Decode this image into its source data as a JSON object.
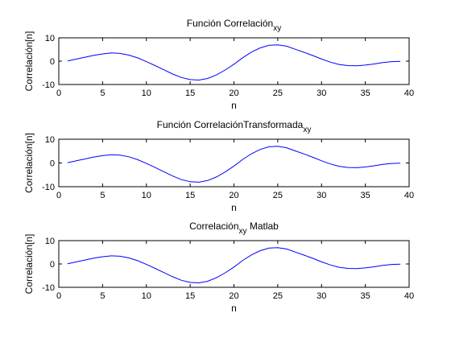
{
  "chart_data": [
    {
      "type": "line",
      "title": "Función Correlación",
      "title_sub": "xy",
      "title_tail": "",
      "xlabel": "n",
      "ylabel": "Correlación[n]",
      "xlim": [
        0,
        40
      ],
      "ylim": [
        -10,
        10
      ],
      "xticks": [
        0,
        5,
        10,
        15,
        20,
        25,
        30,
        35,
        40
      ],
      "yticks": [
        -10,
        0,
        10
      ],
      "grid": false,
      "color": "#0000ff",
      "x": [
        1,
        2,
        3,
        4,
        5,
        6,
        7,
        8,
        9,
        10,
        11,
        12,
        13,
        14,
        15,
        16,
        17,
        18,
        19,
        20,
        21,
        22,
        23,
        24,
        25,
        26,
        27,
        28,
        29,
        30,
        31,
        32,
        33,
        34,
        35,
        36,
        37,
        38,
        39
      ],
      "y": [
        0.1,
        0.9,
        1.7,
        2.5,
        3.1,
        3.5,
        3.3,
        2.6,
        1.4,
        -0.2,
        -1.9,
        -3.7,
        -5.5,
        -7.0,
        -7.9,
        -8.1,
        -7.4,
        -5.9,
        -3.8,
        -1.3,
        1.5,
        3.9,
        5.7,
        6.8,
        7.0,
        6.4,
        5.1,
        3.8,
        2.4,
        0.9,
        -0.4,
        -1.4,
        -1.9,
        -2.0,
        -1.7,
        -1.2,
        -0.6,
        -0.2,
        -0.1
      ]
    },
    {
      "type": "line",
      "title": "Función CorrelaciónTransformada",
      "title_sub": "xy",
      "title_tail": "",
      "xlabel": "n",
      "ylabel": "Correlación[n]",
      "xlim": [
        0,
        40
      ],
      "ylim": [
        -10,
        10
      ],
      "xticks": [
        0,
        5,
        10,
        15,
        20,
        25,
        30,
        35,
        40
      ],
      "yticks": [
        -10,
        0,
        10
      ],
      "grid": false,
      "color": "#0000ff",
      "x": [
        1,
        2,
        3,
        4,
        5,
        6,
        7,
        8,
        9,
        10,
        11,
        12,
        13,
        14,
        15,
        16,
        17,
        18,
        19,
        20,
        21,
        22,
        23,
        24,
        25,
        26,
        27,
        28,
        29,
        30,
        31,
        32,
        33,
        34,
        35,
        36,
        37,
        38,
        39
      ],
      "y": [
        0.1,
        0.9,
        1.7,
        2.5,
        3.1,
        3.5,
        3.3,
        2.6,
        1.4,
        -0.2,
        -1.9,
        -3.7,
        -5.5,
        -7.0,
        -7.9,
        -8.1,
        -7.4,
        -5.9,
        -3.8,
        -1.3,
        1.5,
        3.9,
        5.7,
        6.8,
        7.0,
        6.4,
        5.1,
        3.8,
        2.4,
        0.9,
        -0.4,
        -1.4,
        -1.9,
        -2.0,
        -1.7,
        -1.2,
        -0.6,
        -0.2,
        -0.1
      ]
    },
    {
      "type": "line",
      "title": "Correlación",
      "title_sub": "xy",
      "title_tail": " Matlab",
      "xlabel": "n",
      "ylabel": "Correlación[n]",
      "xlim": [
        0,
        40
      ],
      "ylim": [
        -10,
        10
      ],
      "xticks": [
        0,
        5,
        10,
        15,
        20,
        25,
        30,
        35,
        40
      ],
      "yticks": [
        -10,
        0,
        10
      ],
      "grid": false,
      "color": "#0000ff",
      "x": [
        1,
        2,
        3,
        4,
        5,
        6,
        7,
        8,
        9,
        10,
        11,
        12,
        13,
        14,
        15,
        16,
        17,
        18,
        19,
        20,
        21,
        22,
        23,
        24,
        25,
        26,
        27,
        28,
        29,
        30,
        31,
        32,
        33,
        34,
        35,
        36,
        37,
        38,
        39
      ],
      "y": [
        0.1,
        0.9,
        1.7,
        2.5,
        3.1,
        3.5,
        3.3,
        2.6,
        1.4,
        -0.2,
        -1.9,
        -3.7,
        -5.5,
        -7.0,
        -7.9,
        -8.1,
        -7.4,
        -5.9,
        -3.8,
        -1.3,
        1.5,
        3.9,
        5.7,
        6.8,
        7.0,
        6.4,
        5.1,
        3.8,
        2.4,
        0.9,
        -0.4,
        -1.4,
        -1.9,
        -2.0,
        -1.7,
        -1.2,
        -0.6,
        -0.2,
        -0.1
      ]
    }
  ]
}
